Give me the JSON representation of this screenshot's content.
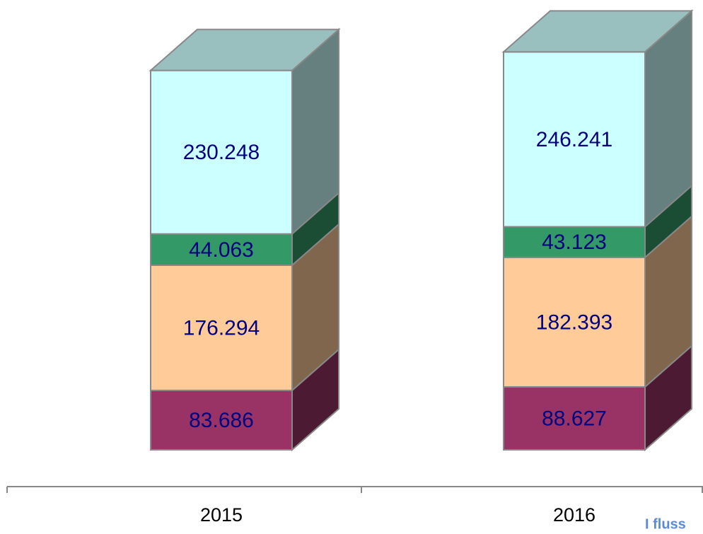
{
  "chart_data": {
    "type": "bar3d-stacked",
    "categories": [
      "2015",
      "2016"
    ],
    "series": [
      {
        "color": "#993366",
        "values": [
          83.686,
          88.627
        ]
      },
      {
        "color": "#ffcc99",
        "values": [
          176.294,
          182.393
        ]
      },
      {
        "color": "#339966",
        "values": [
          44.063,
          43.123
        ]
      },
      {
        "color": "#ccffff",
        "values": [
          230.248,
          246.241
        ]
      }
    ],
    "annotation": "I fluss"
  }
}
